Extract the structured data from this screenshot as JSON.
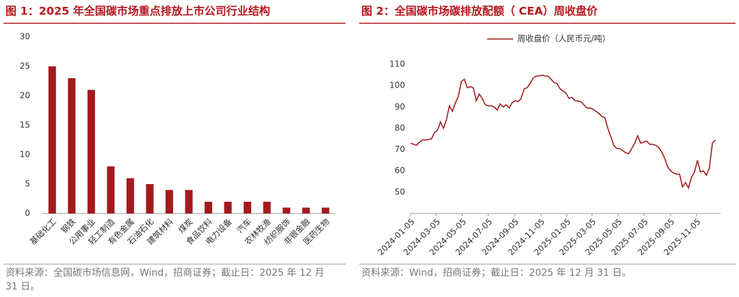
{
  "chart_data": [
    {
      "type": "bar",
      "title": "图 1：2025 年全国碳市场重点排放上市公司行业结构",
      "categories": [
        "基础化工",
        "钢铁",
        "公用事业",
        "轻工制造",
        "有色金属",
        "石油石化",
        "建筑材料",
        "煤炭",
        "食品饮料",
        "电力设备",
        "汽车",
        "农林牧渔",
        "纺织服饰",
        "非银金融",
        "医药生物"
      ],
      "values": [
        25,
        23,
        21,
        8,
        6,
        5,
        4,
        4,
        2,
        2,
        2,
        2,
        1,
        1,
        1
      ],
      "color": "#a31a1d",
      "ylim": [
        0,
        30
      ],
      "yticks": [
        0,
        5,
        10,
        15,
        20,
        25,
        30
      ],
      "grid": false,
      "source": "资料来源：全国碳市场信息网，Wind，招商证券；截止日：2025 年 12 月 31 日。"
    },
    {
      "type": "line",
      "title": "图 2：全国碳市场碳排放配额（ CEA）周收盘价",
      "x": [
        "2024-01-05",
        "2024-01-12",
        "2024-01-19",
        "2024-01-26",
        "2024-02-02",
        "2024-02-09",
        "2024-02-23",
        "2024-03-01",
        "2024-03-08",
        "2024-03-15",
        "2024-03-22",
        "2024-03-29",
        "2024-04-05",
        "2024-04-12",
        "2024-04-19",
        "2024-04-26",
        "2024-05-03",
        "2024-05-10",
        "2024-05-17",
        "2024-05-24",
        "2024-05-31",
        "2024-06-07",
        "2024-06-14",
        "2024-06-21",
        "2024-06-28",
        "2024-07-05",
        "2024-07-12",
        "2024-07-19",
        "2024-07-26",
        "2024-08-02",
        "2024-08-09",
        "2024-08-16",
        "2024-08-23",
        "2024-08-30",
        "2024-09-06",
        "2024-09-13",
        "2024-09-20",
        "2024-09-27",
        "2024-10-04",
        "2024-10-11",
        "2024-10-18",
        "2024-10-25",
        "2024-11-01",
        "2024-11-08",
        "2024-11-15",
        "2024-11-22",
        "2024-11-29",
        "2024-12-06",
        "2024-12-13",
        "2024-12-20",
        "2024-12-27",
        "2025-01-03",
        "2025-01-10",
        "2025-01-17",
        "2025-01-24",
        "2025-02-07",
        "2025-02-14",
        "2025-02-21",
        "2025-02-28",
        "2025-03-07",
        "2025-03-14",
        "2025-03-21",
        "2025-03-28",
        "2025-04-04",
        "2025-04-11",
        "2025-04-18",
        "2025-04-25",
        "2025-05-02",
        "2025-05-09",
        "2025-05-16",
        "2025-05-23",
        "2025-05-30",
        "2025-06-06",
        "2025-06-13",
        "2025-06-20",
        "2025-06-27",
        "2025-07-04",
        "2025-07-11",
        "2025-07-18",
        "2025-07-25",
        "2025-08-01",
        "2025-08-08",
        "2025-08-15",
        "2025-08-22",
        "2025-08-29",
        "2025-09-05",
        "2025-09-12",
        "2025-09-19",
        "2025-09-26",
        "2025-10-03",
        "2025-10-10",
        "2025-10-17",
        "2025-10-24",
        "2025-10-31",
        "2025-11-07",
        "2025-11-14",
        "2025-11-21",
        "2025-11-28",
        "2025-12-05",
        "2025-12-12",
        "2025-12-19"
      ],
      "series": [
        {
          "name": "周收盘价（人民币元/吨）",
          "color": "#a31a1d",
          "values": [
            73,
            72.5,
            72,
            73.5,
            74.5,
            74.5,
            75,
            78,
            79,
            83,
            80,
            84,
            90.5,
            88,
            92,
            95,
            102,
            103,
            99,
            99.5,
            99,
            93,
            96,
            94,
            91,
            90.5,
            90.5,
            90,
            88.5,
            91.5,
            90,
            91,
            89.5,
            92,
            93,
            92.5,
            94,
            98.5,
            99,
            101,
            103.5,
            104.5,
            104.5,
            105,
            104.5,
            104.5,
            103,
            101.5,
            101,
            98.5,
            97.5,
            96.5,
            94,
            94.5,
            93,
            92.5,
            91,
            89.5,
            89.5,
            89,
            88,
            87,
            85.5,
            85,
            80,
            76,
            72,
            70.5,
            70.5,
            69.5,
            68.5,
            68,
            70.5,
            73,
            76.5,
            73,
            73.5,
            74,
            72.5,
            72.5,
            72,
            71,
            69,
            66,
            62,
            60,
            59,
            58.5,
            58.5,
            52.5,
            54.5,
            52,
            57,
            59.5,
            65,
            59.5,
            60,
            58,
            61.5,
            73,
            74.5
          ]
        }
      ],
      "xlim": [
        "2024-01-05",
        "2025-12-31"
      ],
      "xticks": [
        "2024-01-05",
        "2024-03-05",
        "2024-05-05",
        "2024-07-05",
        "2024-09-05",
        "2024-11-05",
        "2025-01-05",
        "2025-03-05",
        "2025-05-05",
        "2025-07-05",
        "2025-09-05",
        "2025-11-05"
      ],
      "ylim": [
        40,
        110
      ],
      "yticks": [
        50,
        60,
        70,
        80,
        90,
        100,
        110
      ],
      "grid": false,
      "source": "资料来源：Wind，招商证券；截止日：2025 年 12 月 31 日。"
    }
  ]
}
